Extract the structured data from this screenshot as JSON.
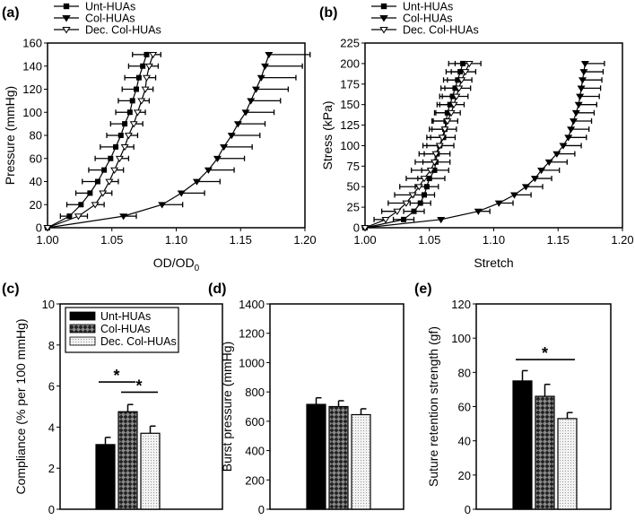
{
  "chart_data": [
    {
      "panel": "(a)",
      "type": "line",
      "xlabel": "OD/OD",
      "xlabel_sub": "0",
      "ylabel": "Pressure (mmHg)",
      "xlim": [
        1.0,
        1.2
      ],
      "ylim": [
        0,
        160
      ],
      "xticks": [
        "1.00",
        "1.05",
        "1.10",
        "1.15",
        "1.20"
      ],
      "yticks": [
        "0",
        "20",
        "40",
        "60",
        "80",
        "100",
        "120",
        "140",
        "160"
      ],
      "legend_position": "top-left-outside",
      "y": [
        0,
        10,
        20,
        30,
        40,
        50,
        60,
        70,
        80,
        90,
        100,
        110,
        120,
        130,
        140,
        150
      ],
      "series": [
        {
          "name": "Unt-HUAs",
          "marker": "square",
          "x": [
            1.0,
            1.017,
            1.026,
            1.033,
            1.039,
            1.044,
            1.049,
            1.053,
            1.057,
            1.06,
            1.064,
            1.066,
            1.069,
            1.071,
            1.074,
            1.077
          ],
          "err_minus": [
            0,
            0.007,
            0.011,
            0.011,
            0.012,
            0.012,
            0.012,
            0.012,
            0.011,
            0.011,
            0.011,
            0.011,
            0.011,
            0.011,
            0.011,
            0.011
          ],
          "err_plus": []
        },
        {
          "name": "Col-HUAs",
          "marker": "triangle-filled",
          "x": [
            1.0,
            1.059,
            1.089,
            1.104,
            1.116,
            1.125,
            1.132,
            1.137,
            1.143,
            1.148,
            1.154,
            1.158,
            1.162,
            1.166,
            1.169,
            1.172
          ],
          "err_minus": [],
          "err_plus": [
            0,
            0.01,
            0.016,
            0.018,
            0.018,
            0.02,
            0.021,
            0.022,
            0.022,
            0.021,
            0.022,
            0.023,
            0.025,
            0.027,
            0.029,
            0.032
          ]
        },
        {
          "name": "Dec. Col-HUAs",
          "marker": "triangle-open",
          "x": [
            1.0,
            1.024,
            1.037,
            1.043,
            1.048,
            1.052,
            1.056,
            1.06,
            1.063,
            1.067,
            1.07,
            1.073,
            1.076,
            1.077,
            1.079,
            1.082
          ],
          "err_minus": [],
          "err_plus": [
            0,
            0.007,
            0.007,
            0.007,
            0.007,
            0.007,
            0.007,
            0.007,
            0.007,
            0.007,
            0.006,
            0.006,
            0.006,
            0.007,
            0.007,
            0.006
          ]
        }
      ]
    },
    {
      "panel": "(b)",
      "type": "line",
      "xlabel": "Stretch",
      "xlabel_sub": "",
      "ylabel": "Stress (kPa)",
      "xlim": [
        1.0,
        1.2
      ],
      "ylim": [
        0,
        225
      ],
      "xticks": [
        "1.00",
        "1.05",
        "1.10",
        "1.15",
        "1.20"
      ],
      "yticks": [
        "0",
        "25",
        "50",
        "75",
        "100",
        "125",
        "150",
        "175",
        "200",
        "225"
      ],
      "legend_position": "top-left-outside",
      "y": [
        0,
        10,
        20,
        30,
        40,
        50,
        60,
        70,
        80,
        90,
        100,
        110,
        120,
        130,
        140,
        150,
        160,
        170,
        180,
        190,
        200
      ],
      "series": [
        {
          "name": "Unt-HUAs",
          "marker": "square",
          "x": [
            1.0,
            1.03,
            1.038,
            1.043,
            1.046,
            1.048,
            1.05,
            1.054,
            1.055,
            1.056,
            1.058,
            1.061,
            1.062,
            1.063,
            1.064,
            1.066,
            1.068,
            1.07,
            1.072,
            1.074,
            1.076
          ],
          "err_minus": [
            0,
            0.008,
            0.008,
            0.008,
            0.008,
            0.009,
            0.009,
            0.01,
            0.01,
            0.01,
            0.01,
            0.01,
            0.01,
            0.01,
            0.01,
            0.01,
            0.01,
            0.011,
            0.011,
            0.011,
            0.011
          ],
          "err_plus": [
            0,
            0.008,
            0.008,
            0.008,
            0.008,
            0.009,
            0.012,
            0.011,
            0.011,
            0.01,
            0.011,
            0.009,
            0.009,
            0.009,
            0.01,
            0.011,
            0.012,
            0.012,
            0.011,
            0.012,
            0.014
          ]
        },
        {
          "name": "Col-HUAs",
          "marker": "triangle-filled",
          "x": [
            1.0,
            1.059,
            1.088,
            1.104,
            1.116,
            1.125,
            1.132,
            1.137,
            1.143,
            1.149,
            1.154,
            1.158,
            1.16,
            1.162,
            1.164,
            1.166,
            1.167,
            1.168,
            1.169,
            1.17,
            1.171
          ],
          "err_minus": [],
          "err_plus": [
            0,
            0.0,
            0.009,
            0.011,
            0.013,
            0.013,
            0.013,
            0.014,
            0.014,
            0.014,
            0.014,
            0.014,
            0.014,
            0.014,
            0.014,
            0.014,
            0.015,
            0.015,
            0.015,
            0.015,
            0.015
          ]
        },
        {
          "name": "Dec. Col-HUAs",
          "marker": "triangle-open",
          "x": [
            1.0,
            1.016,
            1.025,
            1.032,
            1.037,
            1.042,
            1.046,
            1.051,
            1.054,
            1.055,
            1.058,
            1.06,
            1.062,
            1.064,
            1.067,
            1.069,
            1.071,
            1.073,
            1.075,
            1.078,
            1.081
          ],
          "err_minus": [
            0,
            0.009,
            0.012,
            0.014,
            0.014,
            0.015,
            0.014,
            0.015,
            0.015,
            0.013,
            0.013,
            0.012,
            0.012,
            0.012,
            0.012,
            0.011,
            0.011,
            0.011,
            0.011,
            0.011,
            0.011
          ],
          "err_plus": []
        }
      ]
    },
    {
      "panel": "(c)",
      "type": "bar",
      "ylabel": "Compliance (% per 100 mmHg)",
      "ylim": [
        0,
        10
      ],
      "yticks": [
        "0",
        "2",
        "4",
        "6",
        "8",
        "10"
      ],
      "categories": [
        "Unt-HUAs",
        "Col-HUAs",
        "Dec. Col-HUAs"
      ],
      "values": [
        3.15,
        4.75,
        3.7
      ],
      "errors": [
        0.35,
        0.35,
        0.35
      ],
      "legend_position": "top-left-inside",
      "significance": [
        {
          "from": 0,
          "to": 1,
          "y": 6.2,
          "label": "*"
        },
        {
          "from": 1,
          "to": 2,
          "y": 5.7,
          "label": "*"
        }
      ]
    },
    {
      "panel": "(d)",
      "type": "bar",
      "ylabel": "Burst pressure (mmHg)",
      "ylim": [
        0,
        1400
      ],
      "yticks": [
        "0",
        "200",
        "400",
        "600",
        "800",
        "1000",
        "1200",
        "1400"
      ],
      "categories": [
        "Unt-HUAs",
        "Col-HUAs",
        "Dec. Col-HUAs"
      ],
      "values": [
        715,
        700,
        645
      ],
      "errors": [
        45,
        40,
        40
      ],
      "significance": []
    },
    {
      "panel": "(e)",
      "type": "bar",
      "ylabel": "Suture retention strength (gf)",
      "ylim": [
        0,
        120
      ],
      "yticks": [
        "0",
        "20",
        "40",
        "60",
        "80",
        "100",
        "120"
      ],
      "categories": [
        "Unt-HUAs",
        "Col-HUAs",
        "Dec. Col-HUAs"
      ],
      "values": [
        75,
        66,
        53
      ],
      "errors": [
        6,
        7,
        3.5
      ],
      "significance": [
        {
          "from": 0,
          "to": 2,
          "y": 87.5,
          "label": "*"
        }
      ]
    }
  ],
  "colors": {
    "unt": "#000000",
    "col": "#555555",
    "dec": "#dddddd"
  }
}
